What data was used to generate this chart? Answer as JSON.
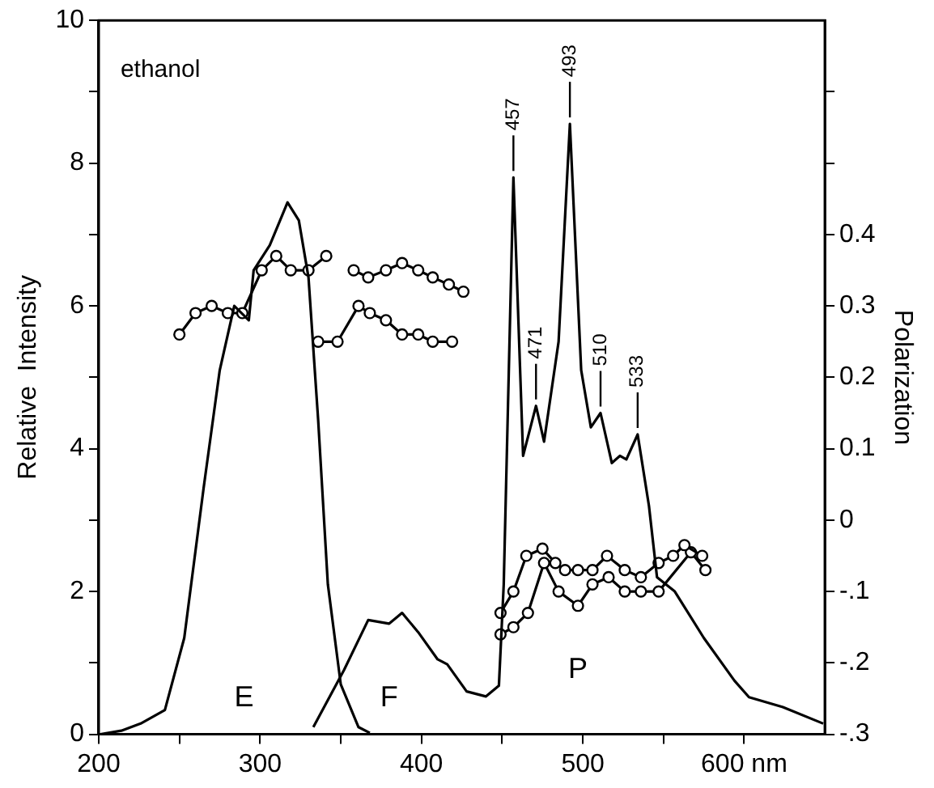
{
  "chart_data": {
    "type": "line",
    "ylabel": "Relative  Intensity",
    "y2label": "Polarization",
    "annotations": [
      "ethanol",
      "E",
      "F",
      "P",
      {
        "text": "457",
        "x": 457,
        "y": 7.8
      },
      {
        "text": "471",
        "x": 471,
        "y": 4.6
      },
      {
        "text": "493",
        "x": 492,
        "y": 8.55
      },
      {
        "text": "510",
        "x": 511,
        "y": 4.5
      },
      {
        "text": "533",
        "x": 534,
        "y": 4.2
      }
    ],
    "xlim": [
      200,
      650
    ],
    "xticks": [
      200,
      {
        "value": 250,
        "label": null
      },
      300,
      {
        "value": 350,
        "label": null
      },
      400,
      {
        "value": 450,
        "label": null
      },
      500,
      {
        "value": 550,
        "label": null
      },
      {
        "value": 600,
        "label": "600 nm"
      }
    ],
    "ylim": [
      0,
      10
    ],
    "yticks": [
      0,
      {
        "value": 1,
        "label": null
      },
      2,
      {
        "value": 3,
        "label": null
      },
      4,
      {
        "value": 5,
        "label": null
      },
      6,
      {
        "value": 7,
        "label": null
      },
      8,
      {
        "value": 9,
        "label": null
      },
      10
    ],
    "y2lim": [
      -0.3,
      0.7
    ],
    "y2ticks": [
      {
        "value": -0.3,
        "label": "-.3"
      },
      {
        "value": -0.2,
        "label": "-.2"
      },
      {
        "value": -0.1,
        "label": "-.1"
      },
      0,
      {
        "value": 0.1,
        "label": "0.1"
      },
      {
        "value": 0.2,
        "label": "0.2"
      },
      {
        "value": 0.3,
        "label": "0.3"
      },
      {
        "value": 0.4,
        "label": "0.4"
      },
      {
        "value": 0.5,
        "label": null
      },
      {
        "value": 0.6,
        "label": null
      }
    ],
    "grid": false,
    "legend": false,
    "marker": "none",
    "line_style": "solid",
    "series": [
      {
        "color": "#000000",
        "x": [
          201,
          214,
          226,
          241,
          253,
          265,
          275,
          284,
          293,
          296,
          306,
          317,
          324,
          330,
          336,
          342,
          350,
          361,
          368
        ],
        "values": [
          0,
          0.05,
          0.15,
          0.34,
          1.35,
          3.45,
          5.1,
          6.0,
          5.8,
          6.5,
          6.85,
          7.45,
          7.2,
          6.4,
          4.4,
          2.1,
          0.7,
          0.1,
          0.02
        ]
      },
      {
        "color": "#000000",
        "x": [
          333,
          352,
          367,
          380,
          388,
          398,
          410,
          416,
          428,
          440,
          448,
          451,
          457,
          463,
          471,
          476,
          485,
          492,
          499,
          505,
          511,
          518,
          523,
          527,
          534,
          541,
          546,
          557,
          575,
          594,
          603,
          624,
          649
        ],
        "values": [
          0.1,
          0.9,
          1.6,
          1.55,
          1.7,
          1.43,
          1.05,
          0.98,
          0.6,
          0.53,
          0.68,
          2.1,
          7.8,
          3.9,
          4.6,
          4.1,
          5.5,
          8.55,
          5.1,
          4.3,
          4.5,
          3.8,
          3.9,
          3.85,
          4.2,
          3.2,
          2.2,
          2.0,
          1.35,
          0.75,
          0.52,
          0.38,
          0.15
        ]
      },
      {
        "color": "#000000",
        "axis": "y2",
        "marker": "circle",
        "x": [
          250,
          260,
          270,
          280,
          289,
          301,
          310,
          319,
          330,
          341
        ],
        "values": [
          0.26,
          0.29,
          0.3,
          0.29,
          0.29,
          0.35,
          0.37,
          0.35,
          0.35,
          0.37
        ]
      },
      {
        "color": "#000000",
        "axis": "y2",
        "marker": "circle",
        "x": [
          358,
          367,
          378,
          388,
          398,
          407,
          417,
          426
        ],
        "values": [
          0.35,
          0.34,
          0.35,
          0.36,
          0.35,
          0.34,
          0.33,
          0.32
        ]
      },
      {
        "color": "#000000",
        "axis": "y2",
        "marker": "circle",
        "x": [
          336,
          348,
          361,
          368,
          378,
          388,
          398,
          407,
          419
        ],
        "values": [
          0.25,
          0.25,
          0.3,
          0.29,
          0.28,
          0.26,
          0.26,
          0.25,
          0.25
        ]
      },
      {
        "color": "#000000",
        "axis": "y2",
        "marker": "circle",
        "x": [
          449,
          457,
          465,
          475,
          483,
          489,
          497,
          506,
          515,
          526,
          536,
          547,
          556,
          563,
          574
        ],
        "values": [
          -0.13,
          -0.1,
          -0.05,
          -0.04,
          -0.06,
          -0.07,
          -0.07,
          -0.07,
          -0.05,
          -0.07,
          -0.08,
          -0.06,
          -0.05,
          -0.035,
          -0.05
        ]
      },
      {
        "color": "#000000",
        "axis": "y2",
        "marker": "circle",
        "x": [
          449,
          457,
          466,
          476,
          485,
          497,
          506,
          516,
          526,
          536,
          547,
          567,
          576
        ],
        "values": [
          -0.16,
          -0.15,
          -0.13,
          -0.06,
          -0.1,
          -0.12,
          -0.09,
          -0.08,
          -0.1,
          -0.1,
          -0.1,
          -0.045,
          -0.07
        ]
      }
    ]
  }
}
